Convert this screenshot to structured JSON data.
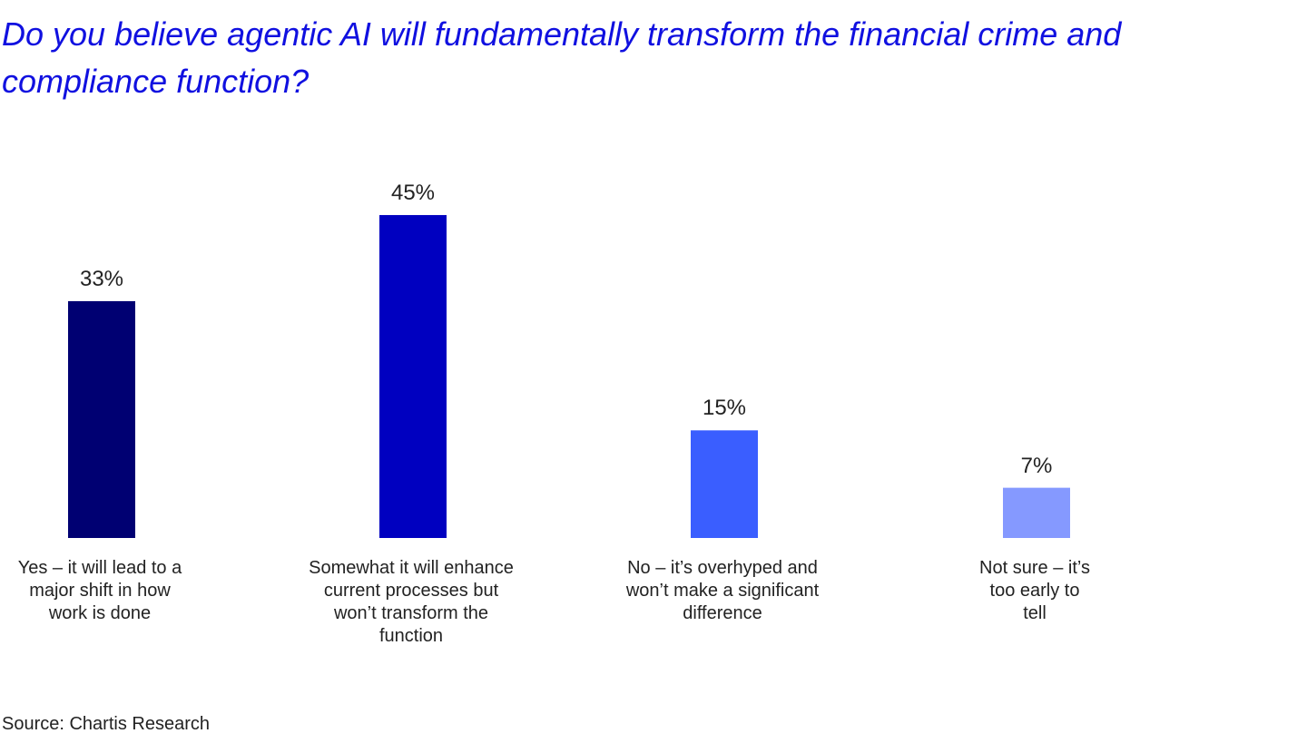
{
  "chart_data": {
    "type": "bar",
    "title": "Do you believe agentic AI will fundamentally transform the financial crime and compliance function?",
    "categories": [
      "Yes – it will lead to a major shift in how work is done",
      "Somewhat it will enhance current processes but won’t transform the function",
      "No – it’s overhyped and won’t make a significant difference",
      "Not sure – it’s too early to tell"
    ],
    "values": [
      33,
      45,
      15,
      7
    ],
    "value_labels": [
      "33%",
      "45%",
      "15%",
      "7%"
    ],
    "colors": [
      "#000072",
      "#0000c0",
      "#3a5eff",
      "#8599ff"
    ],
    "source": "Source: Chartis Research"
  }
}
